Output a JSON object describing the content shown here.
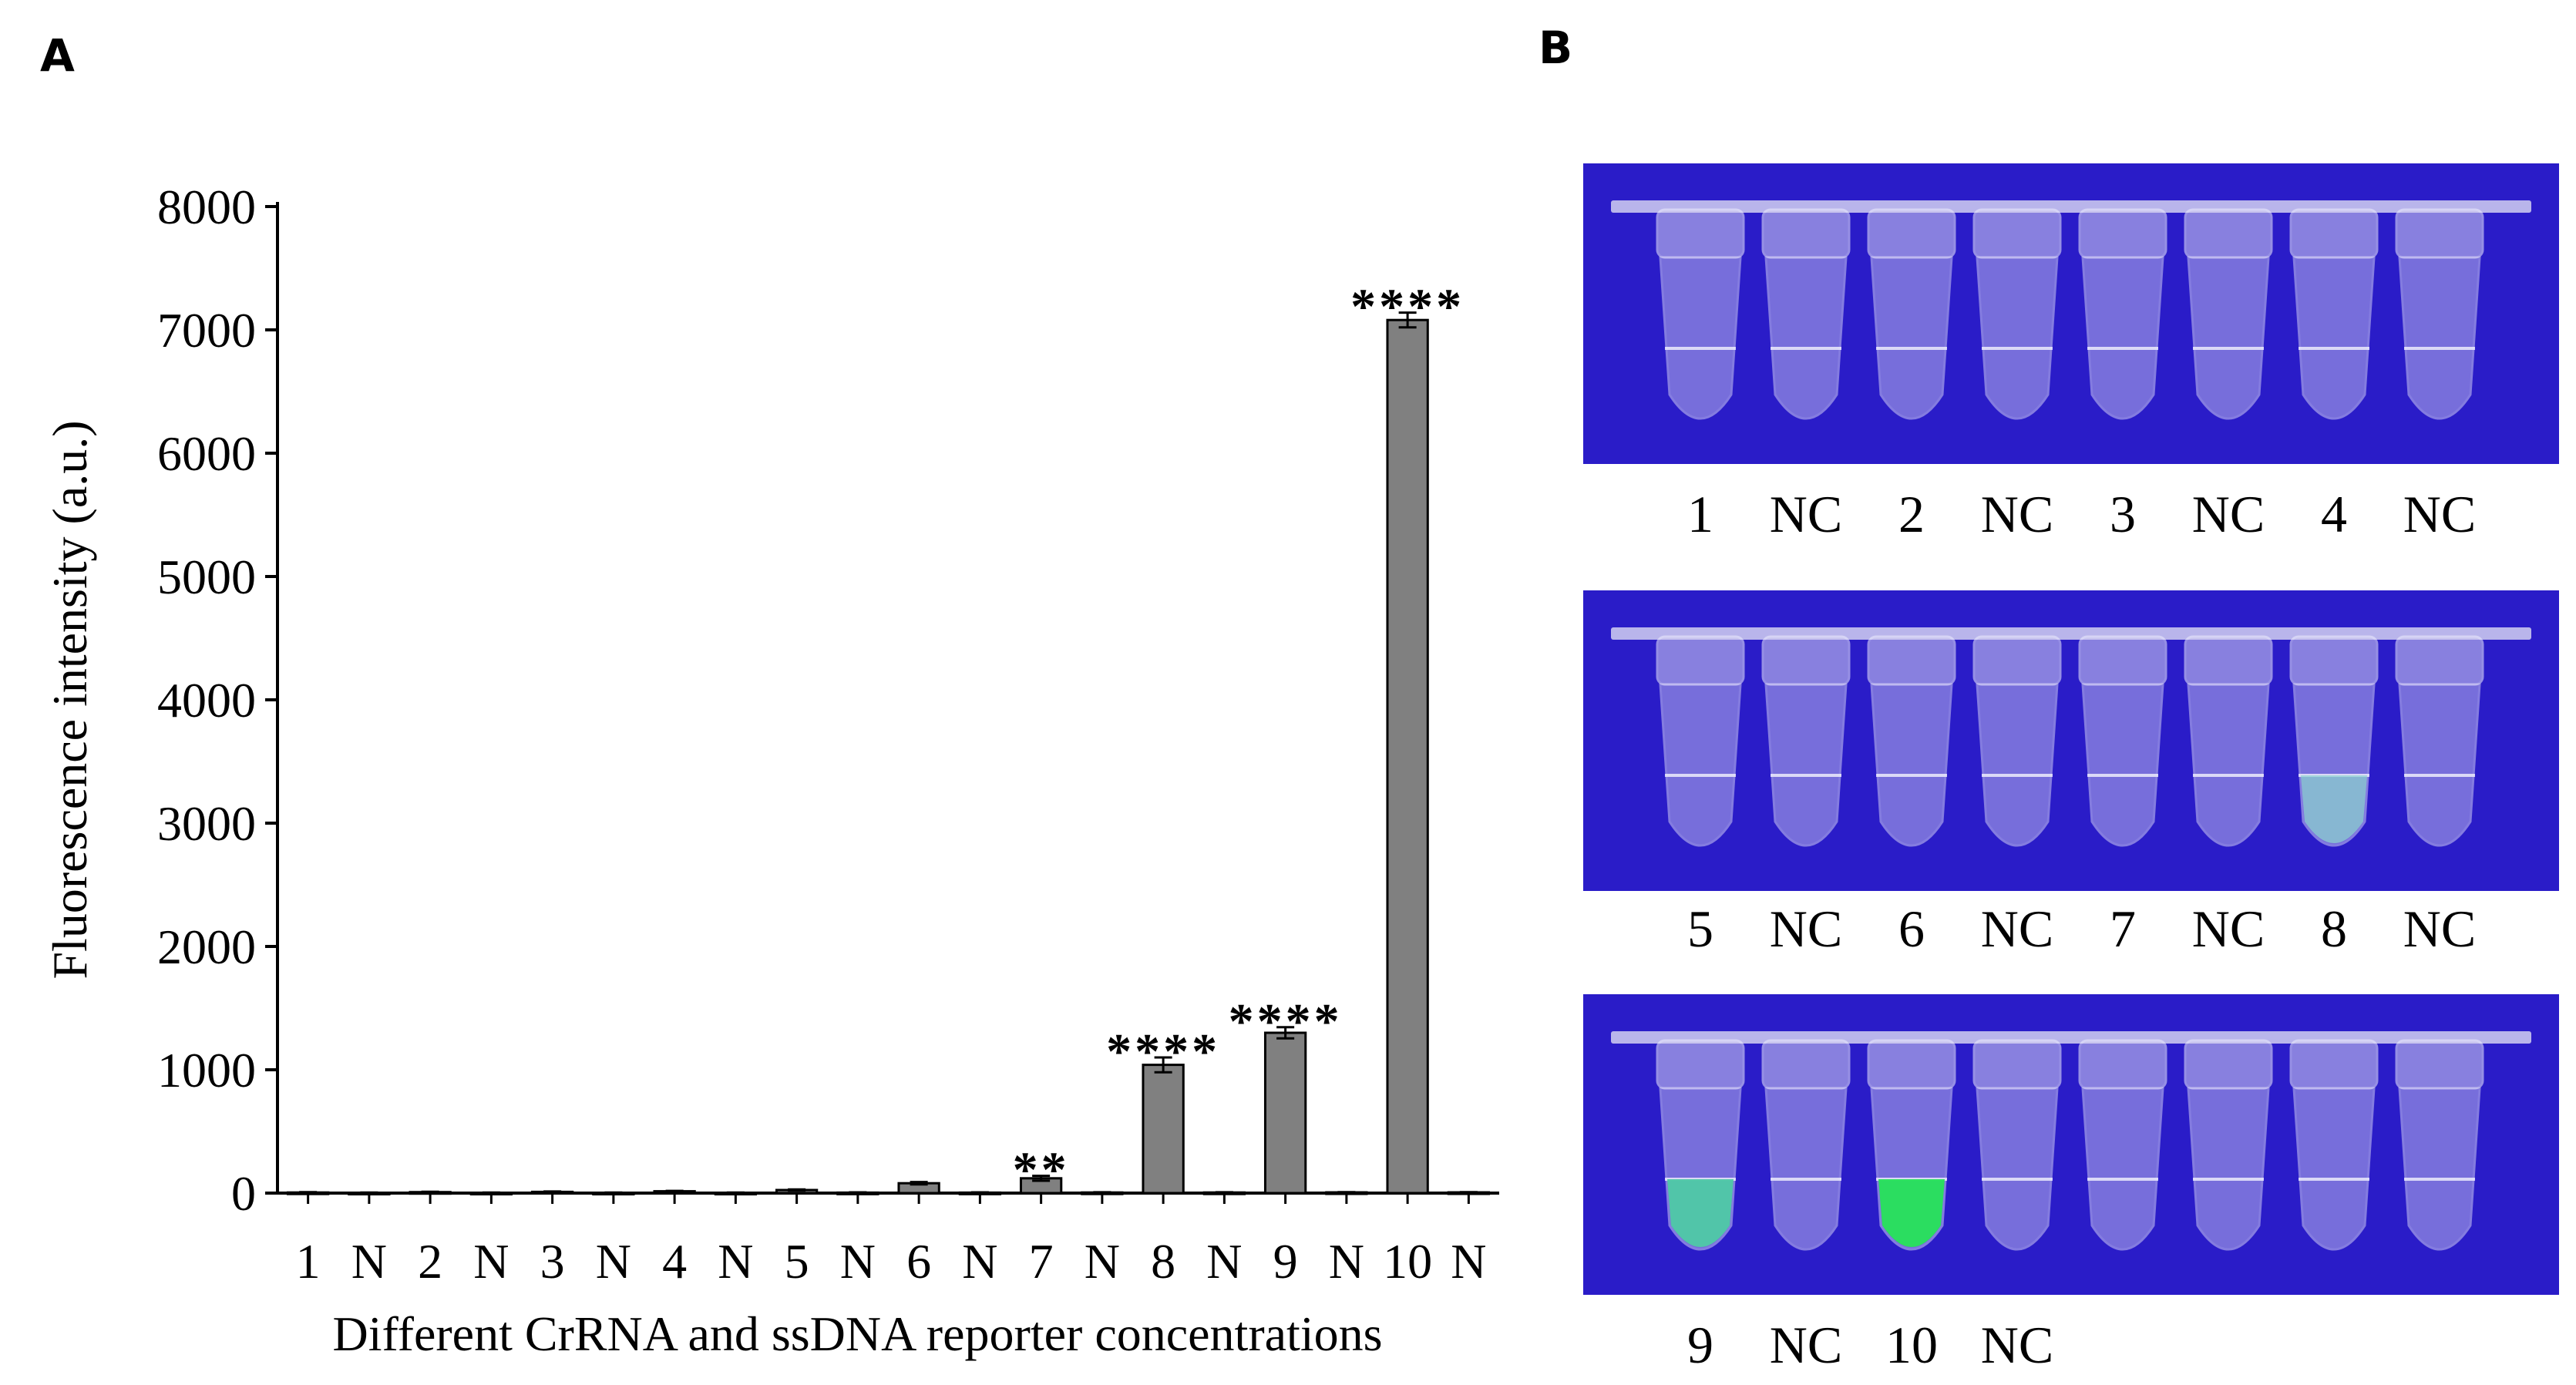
{
  "panels": {
    "a": "A",
    "b": "B"
  },
  "chart_data": {
    "type": "bar",
    "categories": [
      "1",
      "N",
      "2",
      "N",
      "3",
      "N",
      "4",
      "N",
      "5",
      "N",
      "6",
      "N",
      "7",
      "N",
      "8",
      "N",
      "9",
      "N",
      "10",
      "N"
    ],
    "values": [
      5,
      3,
      8,
      3,
      10,
      3,
      15,
      3,
      25,
      4,
      80,
      4,
      120,
      5,
      1040,
      5,
      1300,
      6,
      7080,
      6
    ],
    "errors": [
      3,
      2,
      3,
      2,
      3,
      2,
      3,
      2,
      5,
      2,
      10,
      2,
      20,
      2,
      60,
      2,
      45,
      2,
      60,
      2
    ],
    "significance": [
      "",
      "",
      "",
      "",
      "",
      "",
      "",
      "",
      "",
      "",
      "",
      "",
      "**",
      "",
      "****",
      "",
      "****",
      "",
      "****",
      ""
    ],
    "ylabel": "Fluorescence intensity (a.u.)",
    "xlabel": "Different CrRNA and ssDNA reporter concentrations",
    "ylim": [
      0,
      8000
    ],
    "yticks": [
      0,
      1000,
      2000,
      3000,
      4000,
      5000,
      6000,
      7000,
      8000
    ],
    "bar_color": "#808080",
    "grid": false,
    "legend": "none"
  },
  "photos": [
    {
      "tubes": [
        {
          "fluor": "none"
        },
        {
          "fluor": "none"
        },
        {
          "fluor": "none"
        },
        {
          "fluor": "none"
        },
        {
          "fluor": "none"
        },
        {
          "fluor": "none"
        },
        {
          "fluor": "none"
        },
        {
          "fluor": "none"
        }
      ],
      "labels": [
        "1",
        "NC",
        "2",
        "NC",
        "3",
        "NC",
        "4",
        "NC"
      ]
    },
    {
      "tubes": [
        {
          "fluor": "none"
        },
        {
          "fluor": "none"
        },
        {
          "fluor": "none"
        },
        {
          "fluor": "none"
        },
        {
          "fluor": "none"
        },
        {
          "fluor": "none"
        },
        {
          "fluor": "weak"
        },
        {
          "fluor": "none"
        }
      ],
      "labels": [
        "5",
        "NC",
        "6",
        "NC",
        "7",
        "NC",
        "8",
        "NC"
      ]
    },
    {
      "tubes": [
        {
          "fluor": "medium"
        },
        {
          "fluor": "none"
        },
        {
          "fluor": "strong"
        },
        {
          "fluor": "none"
        },
        {
          "fluor": "none"
        },
        {
          "fluor": "none"
        },
        {
          "fluor": "none"
        },
        {
          "fluor": "none"
        }
      ],
      "labels": [
        "9",
        "NC",
        "10",
        "NC"
      ]
    }
  ],
  "colors": {
    "uv_background": "#2a1cc8",
    "green_fluor": "#27e35a",
    "tube": "#d6d2f2"
  }
}
